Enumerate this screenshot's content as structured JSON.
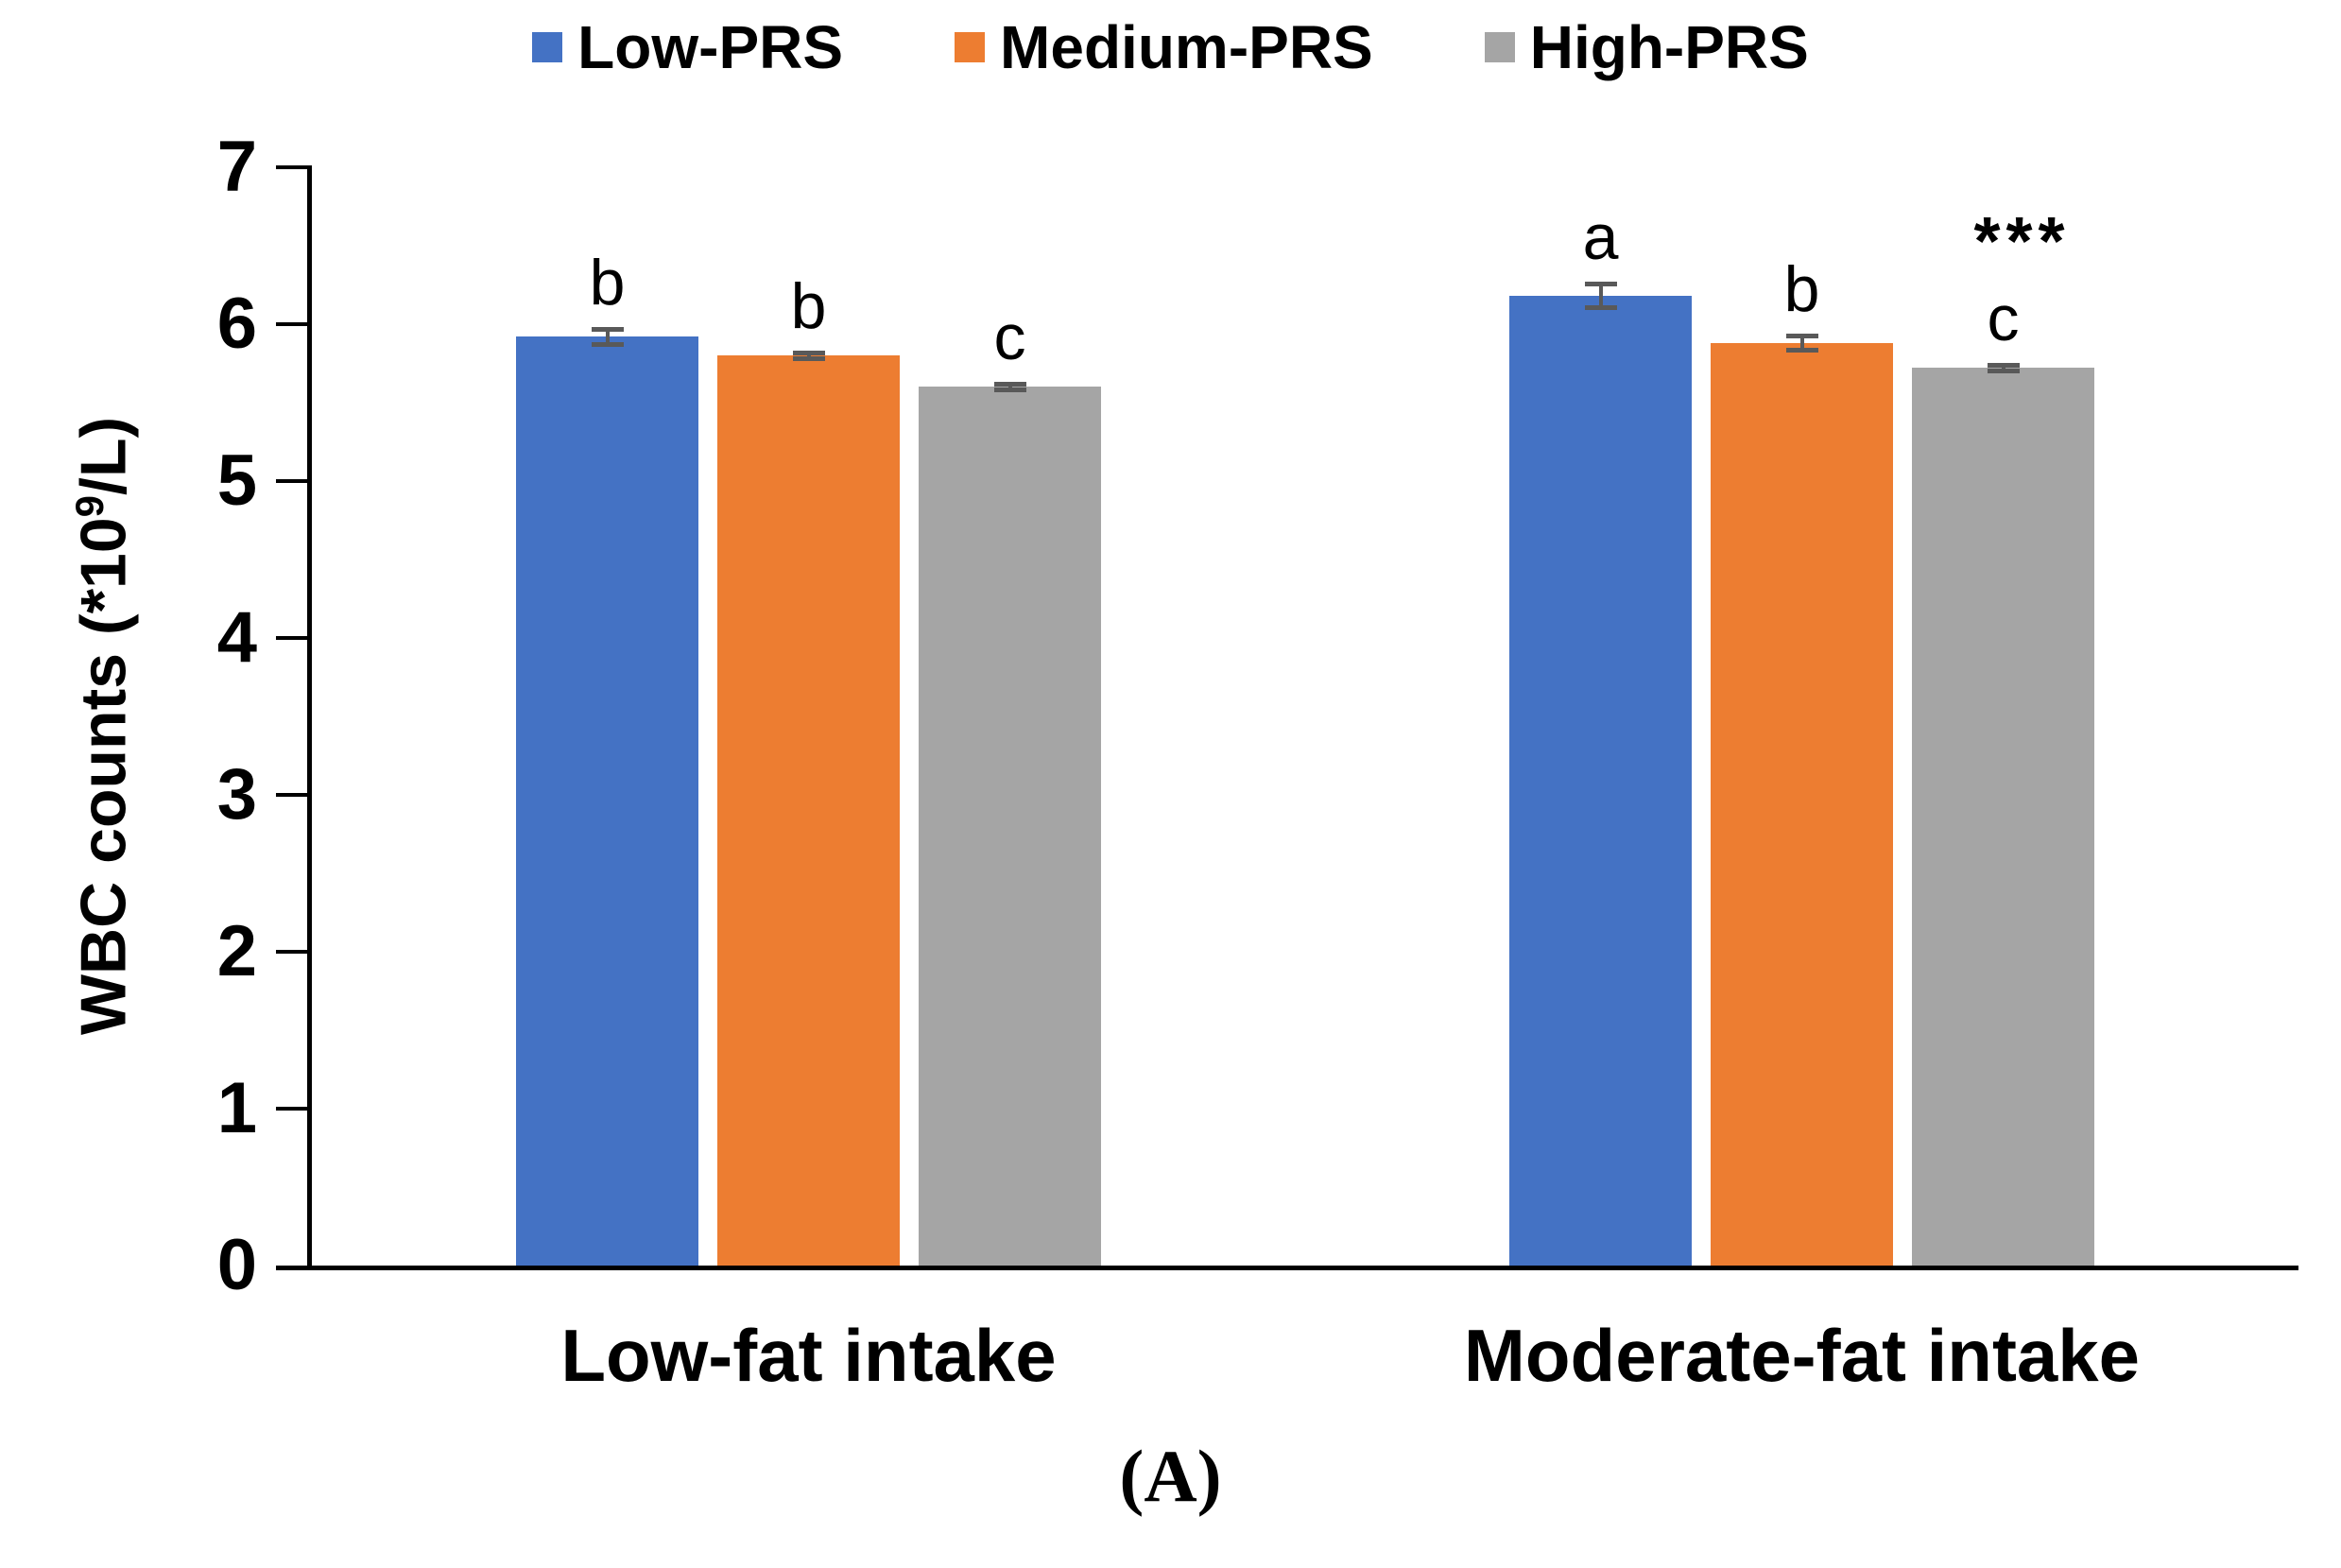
{
  "figure": {
    "panel_label": "(A)"
  },
  "legend": {
    "items": [
      {
        "label": "Low-PRS",
        "color": "#4472C4"
      },
      {
        "label": "Medium-PRS",
        "color": "#ED7D31"
      },
      {
        "label": "High-PRS",
        "color": "#A5A5A5"
      }
    ]
  },
  "chart_data": {
    "type": "bar",
    "title": "",
    "xlabel": "",
    "ylabel": "WBC counts (*10⁹/L)",
    "ylabel_parts": {
      "base": "WBC counts (*10",
      "sup": "9",
      "end": "/L)"
    },
    "ylim": [
      0,
      7
    ],
    "yticks": [
      0,
      1,
      2,
      3,
      4,
      5,
      6,
      7
    ],
    "grid": false,
    "legend_position": "top",
    "categories": [
      "Low-fat intake",
      "Moderate-fat intake"
    ],
    "series": [
      {
        "name": "Low-PRS",
        "color": "#4472C4",
        "values": [
          5.92,
          6.18
        ],
        "errors": [
          0.05,
          0.08
        ],
        "sig_letters": [
          "b",
          "a"
        ]
      },
      {
        "name": "Medium-PRS",
        "color": "#ED7D31",
        "values": [
          5.8,
          5.88
        ],
        "errors": [
          0.02,
          0.05
        ],
        "sig_letters": [
          "b",
          "b"
        ]
      },
      {
        "name": "High-PRS",
        "color": "#A5A5A5",
        "values": [
          5.6,
          5.72
        ],
        "errors": [
          0.02,
          0.02
        ],
        "sig_letters": [
          "c",
          "c"
        ]
      }
    ],
    "annotations": [
      {
        "text": "***",
        "series": "High-PRS",
        "category": "Moderate-fat intake"
      }
    ],
    "error_bar_color": "#595959"
  }
}
